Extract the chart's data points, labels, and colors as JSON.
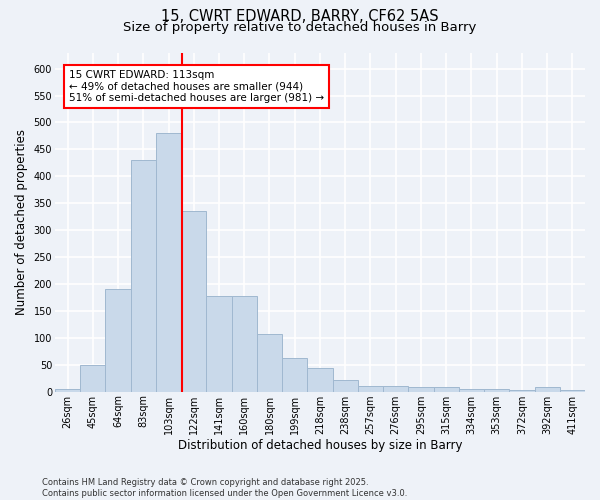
{
  "title": "15, CWRT EDWARD, BARRY, CF62 5AS",
  "subtitle": "Size of property relative to detached houses in Barry",
  "xlabel": "Distribution of detached houses by size in Barry",
  "ylabel": "Number of detached properties",
  "categories": [
    "26sqm",
    "45sqm",
    "64sqm",
    "83sqm",
    "103sqm",
    "122sqm",
    "141sqm",
    "160sqm",
    "180sqm",
    "199sqm",
    "218sqm",
    "238sqm",
    "257sqm",
    "276sqm",
    "295sqm",
    "315sqm",
    "334sqm",
    "353sqm",
    "372sqm",
    "392sqm",
    "411sqm"
  ],
  "values": [
    5,
    50,
    190,
    430,
    480,
    335,
    178,
    178,
    108,
    62,
    44,
    22,
    11,
    11,
    8,
    8,
    5,
    5,
    3,
    8,
    3
  ],
  "bar_color": "#c9d9ea",
  "bar_edge_color": "#a0b8d0",
  "vline_x": 4.55,
  "vline_color": "red",
  "annotation_text": "15 CWRT EDWARD: 113sqm\n← 49% of detached houses are smaller (944)\n51% of semi-detached houses are larger (981) →",
  "annotation_box_color": "white",
  "annotation_box_edge_color": "red",
  "ylim": [
    0,
    630
  ],
  "yticks": [
    0,
    50,
    100,
    150,
    200,
    250,
    300,
    350,
    400,
    450,
    500,
    550,
    600
  ],
  "footer": "Contains HM Land Registry data © Crown copyright and database right 2025.\nContains public sector information licensed under the Open Government Licence v3.0.",
  "bg_color": "#eef2f8",
  "plot_bg_color": "#eef2f8",
  "grid_color": "white",
  "title_fontsize": 10.5,
  "subtitle_fontsize": 9.5,
  "tick_fontsize": 7,
  "ylabel_fontsize": 8.5,
  "xlabel_fontsize": 8.5,
  "annotation_fontsize": 7.5,
  "footer_fontsize": 6
}
